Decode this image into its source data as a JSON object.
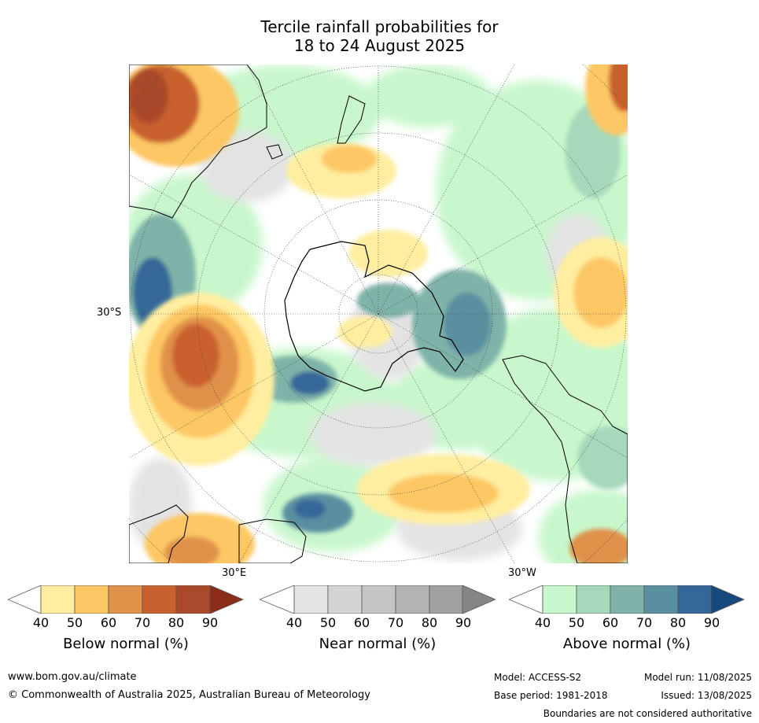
{
  "title_line1": "Tercile rainfall probabilities for",
  "title_line2": "18 to 24 August 2025",
  "map": {
    "graticule_labels": {
      "lat": "30°S",
      "lon_east": "30°E",
      "lon_west": "30°W"
    }
  },
  "colorbars": [
    {
      "label": "Below normal (%)",
      "ticks": [
        "40",
        "50",
        "60",
        "70",
        "80",
        "90"
      ],
      "colors": [
        "#ffeea0",
        "#fdc763",
        "#e0914a",
        "#c9612f",
        "#aa4a2a",
        "#8c2d19"
      ]
    },
    {
      "label": "Near normal (%)",
      "ticks": [
        "40",
        "50",
        "60",
        "70",
        "80",
        "90"
      ],
      "colors": [
        "#e3e3e3",
        "#d4d4d4",
        "#c4c4c4",
        "#b3b3b3",
        "#a1a1a1",
        "#858585"
      ]
    },
    {
      "label": "Above normal (%)",
      "ticks": [
        "40",
        "50",
        "60",
        "70",
        "80",
        "90"
      ],
      "colors": [
        "#c8f7cc",
        "#a6d8bb",
        "#7fb3a9",
        "#5a8fa0",
        "#356799",
        "#17497f"
      ]
    }
  ],
  "footer": {
    "url": "www.bom.gov.au/climate",
    "copyright": "© Commonwealth of Australia 2025, Australian Bureau of Meteorology",
    "model": "Model: ACCESS-S2",
    "model_run": "Model run: 11/08/2025",
    "base_period": "Base period: 1981-2018",
    "issued": "Issued: 13/08/2025",
    "disclaimer": "Boundaries are not considered authoritative"
  }
}
